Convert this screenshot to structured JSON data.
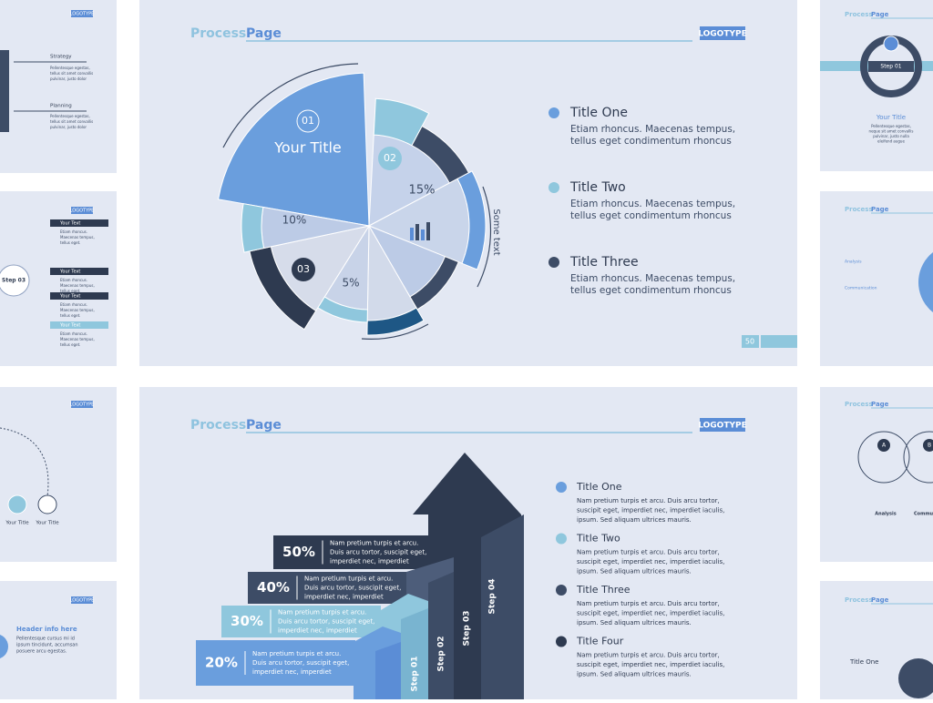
{
  "slide_main": {
    "header": {
      "word1": "Process",
      "word2": "Page",
      "logo": "LOGOTYPE"
    },
    "pie": {
      "n1": "01",
      "title": "Your Title",
      "n2": "02",
      "p15": "15%",
      "p10": "10%",
      "n3": "03",
      "p5": "5%",
      "side": "Some text"
    },
    "items": [
      {
        "title": "Title One",
        "lines": [
          "Etiam rhoncus. Maecenas tempus,",
          "tellus eget condimentum rhoncus"
        ]
      },
      {
        "title": "Title Two",
        "lines": [
          "Etiam rhoncus. Maecenas tempus,",
          "tellus eget condimentum rhoncus"
        ]
      },
      {
        "title": "Title Three",
        "lines": [
          "Etiam rhoncus. Maecenas tempus,",
          "tellus eget condimentum rhoncus"
        ]
      }
    ],
    "page": "50"
  },
  "slide_steps": {
    "header": {
      "word1": "Process",
      "word2": "Page",
      "logo": "LOGOTYPE"
    },
    "bars": [
      {
        "pct": "50%",
        "lines": [
          "Nam pretium turpis et arcu.",
          "Duis arcu tortor, suscipit eget,",
          "imperdiet nec, imperdiet"
        ]
      },
      {
        "pct": "40%",
        "lines": [
          "Nam pretium turpis et arcu.",
          "Duis arcu tortor, suscipit eget,",
          "imperdiet nec, imperdiet"
        ]
      },
      {
        "pct": "30%",
        "lines": [
          "Nam pretium turpis et arcu.",
          "Duis arcu tortor, suscipit eget,",
          "imperdiet nec, imperdiet"
        ]
      },
      {
        "pct": "20%",
        "lines": [
          "Nam pretium turpis et arcu.",
          "Duis arcu tortor, suscipit eget,",
          "imperdiet nec, imperdiet"
        ]
      }
    ],
    "steps": [
      "Step 01",
      "Step 02",
      "Step 03",
      "Step 04"
    ],
    "items": [
      {
        "title": "Title One",
        "lines": [
          "Nam pretium turpis et arcu. Duis arcu tortor,",
          "suscipit eget, imperdiet nec, imperdiet iaculis,",
          "ipsum. Sed aliquam ultrices mauris."
        ]
      },
      {
        "title": "Title Two",
        "lines": [
          "Nam pretium turpis et arcu. Duis arcu tortor,",
          "suscipit eget, imperdiet nec, imperdiet iaculis,",
          "ipsum. Sed aliquam ultrices mauris."
        ]
      },
      {
        "title": "Title Three",
        "lines": [
          "Nam pretium turpis et arcu. Duis arcu tortor,",
          "suscipit eget, imperdiet nec, imperdiet iaculis,",
          "ipsum. Sed aliquam ultrices mauris."
        ]
      },
      {
        "title": "Title Four",
        "lines": [
          "Nam pretium turpis et arcu. Duis arcu tortor,",
          "suscipit eget, imperdiet nec, imperdiet iaculis,",
          "ipsum. Sed aliquam ultrices mauris."
        ]
      }
    ]
  },
  "side": {
    "left1": {
      "logo": "LOGOTYPE",
      "strategy": "Strategy",
      "planning": "Planning",
      "body": [
        "Pellentesque egestas,",
        "tellus sit amet convallis",
        "pulvinar, justo dolor"
      ]
    },
    "left2": {
      "logo": "LOGOTYPE",
      "labels": [
        "Your Text",
        "Your Text",
        "Your Text",
        "Your Text"
      ],
      "step": "Step 03",
      "body": [
        "Etiam rhoncus.",
        "Maecenas tempus,",
        "tellus eget."
      ]
    },
    "left3": {
      "logo": "LOGOTYPE",
      "titles": [
        "Your Title",
        "Your Title"
      ]
    },
    "left4": {
      "logo": "LOGOTYPE",
      "header": "Header info here",
      "body": [
        "Pellentesque cursus mi id",
        "ipsum tincidunt, accumsan",
        "posuere arcu egestas."
      ]
    },
    "right1": {
      "word1": "Process",
      "word2": "Page",
      "step": "Step 01",
      "title": "Your Title",
      "body": [
        "Pellentesque egestas,",
        "neque sit amet convallis",
        "pulvinar, justo nulla",
        "eleifend augue"
      ]
    },
    "right2": {
      "word1": "Process",
      "word2": "Page",
      "analysis": "Analysis",
      "communication": "Communication"
    },
    "right3": {
      "word1": "Process",
      "word2": "Page",
      "a": "A",
      "b": "B",
      "analysis": "Analysis",
      "communication": "Communication"
    },
    "right4": {
      "word1": "Process",
      "word2": "Page",
      "title": "Title One"
    }
  }
}
